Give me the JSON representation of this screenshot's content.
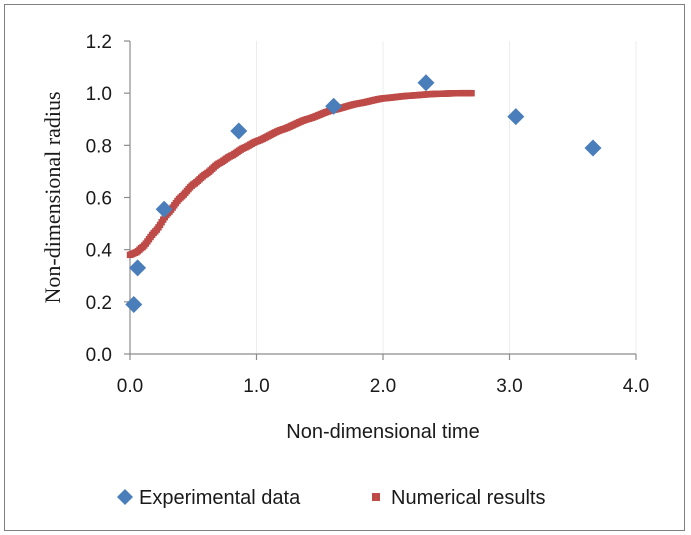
{
  "chart_data": {
    "type": "scatter",
    "title": "",
    "xlabel": "Non-dimensional time",
    "ylabel": "Non-dimensional radius",
    "xlim": [
      0.0,
      4.0
    ],
    "ylim": [
      0.0,
      1.2
    ],
    "xticks": [
      "0.0",
      "1.0",
      "2.0",
      "3.0",
      "4.0"
    ],
    "yticks": [
      "0.0",
      "0.2",
      "0.4",
      "0.6",
      "0.8",
      "1.0",
      "1.2"
    ],
    "x_tick_values": [
      0,
      1,
      2,
      3,
      4
    ],
    "y_tick_values": [
      0,
      0.2,
      0.4,
      0.6,
      0.8,
      1.0,
      1.2
    ],
    "grid": "vertical",
    "legend_position": "bottom",
    "series": [
      {
        "name": "Experimental data",
        "marker": "diamond",
        "color": "#4a7ebb",
        "x": [
          0.03,
          0.06,
          0.27,
          0.86,
          1.61,
          2.34,
          3.05,
          3.66
        ],
        "y": [
          0.19,
          0.33,
          0.555,
          0.855,
          0.95,
          1.04,
          0.91,
          0.79
        ]
      },
      {
        "name": "Numerical results",
        "marker": "square",
        "color": "#be4b48",
        "x_start": 0.0,
        "x_end": 2.7,
        "curve": "smooth",
        "control_x": [
          0.0,
          0.05,
          0.1,
          0.2,
          0.3,
          0.4,
          0.5,
          0.6,
          0.7,
          0.8,
          0.9,
          1.0,
          1.2,
          1.4,
          1.6,
          1.8,
          2.0,
          2.2,
          2.4,
          2.6,
          2.7
        ],
        "control_y": [
          0.38,
          0.39,
          0.41,
          0.47,
          0.54,
          0.6,
          0.65,
          0.69,
          0.73,
          0.76,
          0.79,
          0.815,
          0.86,
          0.9,
          0.935,
          0.96,
          0.98,
          0.99,
          0.997,
          1.0,
          1.0
        ]
      }
    ]
  }
}
